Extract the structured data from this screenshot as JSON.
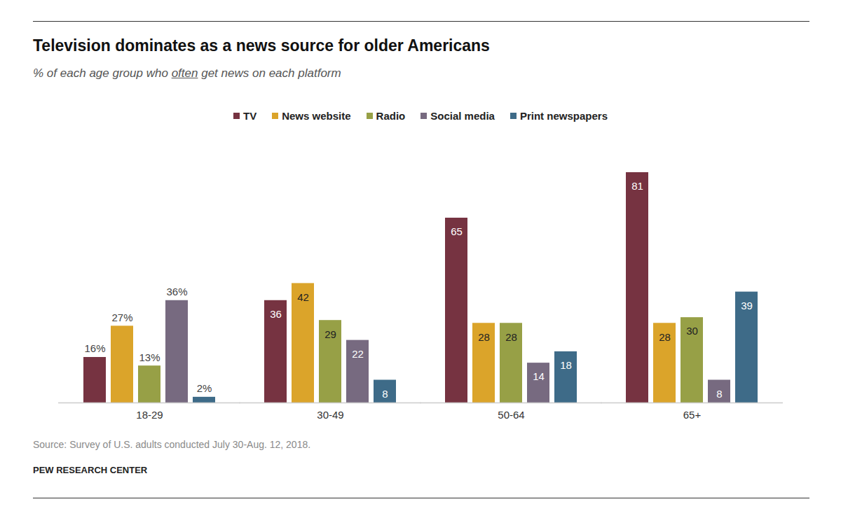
{
  "chart_data": {
    "type": "bar",
    "title": "Television dominates as a news source for older Americans",
    "subtitle": "% of each age group who often get news on each platform",
    "caption": "Source: Survey of U.S. adults conducted July 30-Aug. 12, 2018.",
    "credit": "PEW RESEARCH CENTER",
    "categories": [
      "18-29",
      "30-49",
      "50-64",
      "65+"
    ],
    "series": [
      {
        "name": "TV",
        "color": "#763341",
        "values": [
          16,
          36,
          65,
          81
        ],
        "value_labels": [
          "16%",
          "36",
          "65",
          "81"
        ]
      },
      {
        "name": "News website",
        "color": "#dba42a",
        "values": [
          27,
          42,
          28,
          28
        ],
        "value_labels": [
          "27%",
          "42",
          "28",
          "28"
        ]
      },
      {
        "name": "Radio",
        "color": "#97a046",
        "values": [
          13,
          29,
          28,
          30
        ],
        "value_labels": [
          "13%",
          "29",
          "28",
          "30"
        ]
      },
      {
        "name": "Social media",
        "color": "#776a80",
        "values": [
          36,
          22,
          14,
          8
        ],
        "value_labels": [
          "36%",
          "22",
          "14",
          "8"
        ]
      },
      {
        "name": "Print newspapers",
        "color": "#3e6b88",
        "values": [
          2,
          8,
          18,
          39
        ],
        "value_labels": [
          "2%",
          "8",
          "18",
          "39"
        ]
      }
    ],
    "ylim": [
      0,
      81
    ],
    "data_labels": true,
    "legend": "top",
    "tick_labels": "x",
    "grid": false
  }
}
